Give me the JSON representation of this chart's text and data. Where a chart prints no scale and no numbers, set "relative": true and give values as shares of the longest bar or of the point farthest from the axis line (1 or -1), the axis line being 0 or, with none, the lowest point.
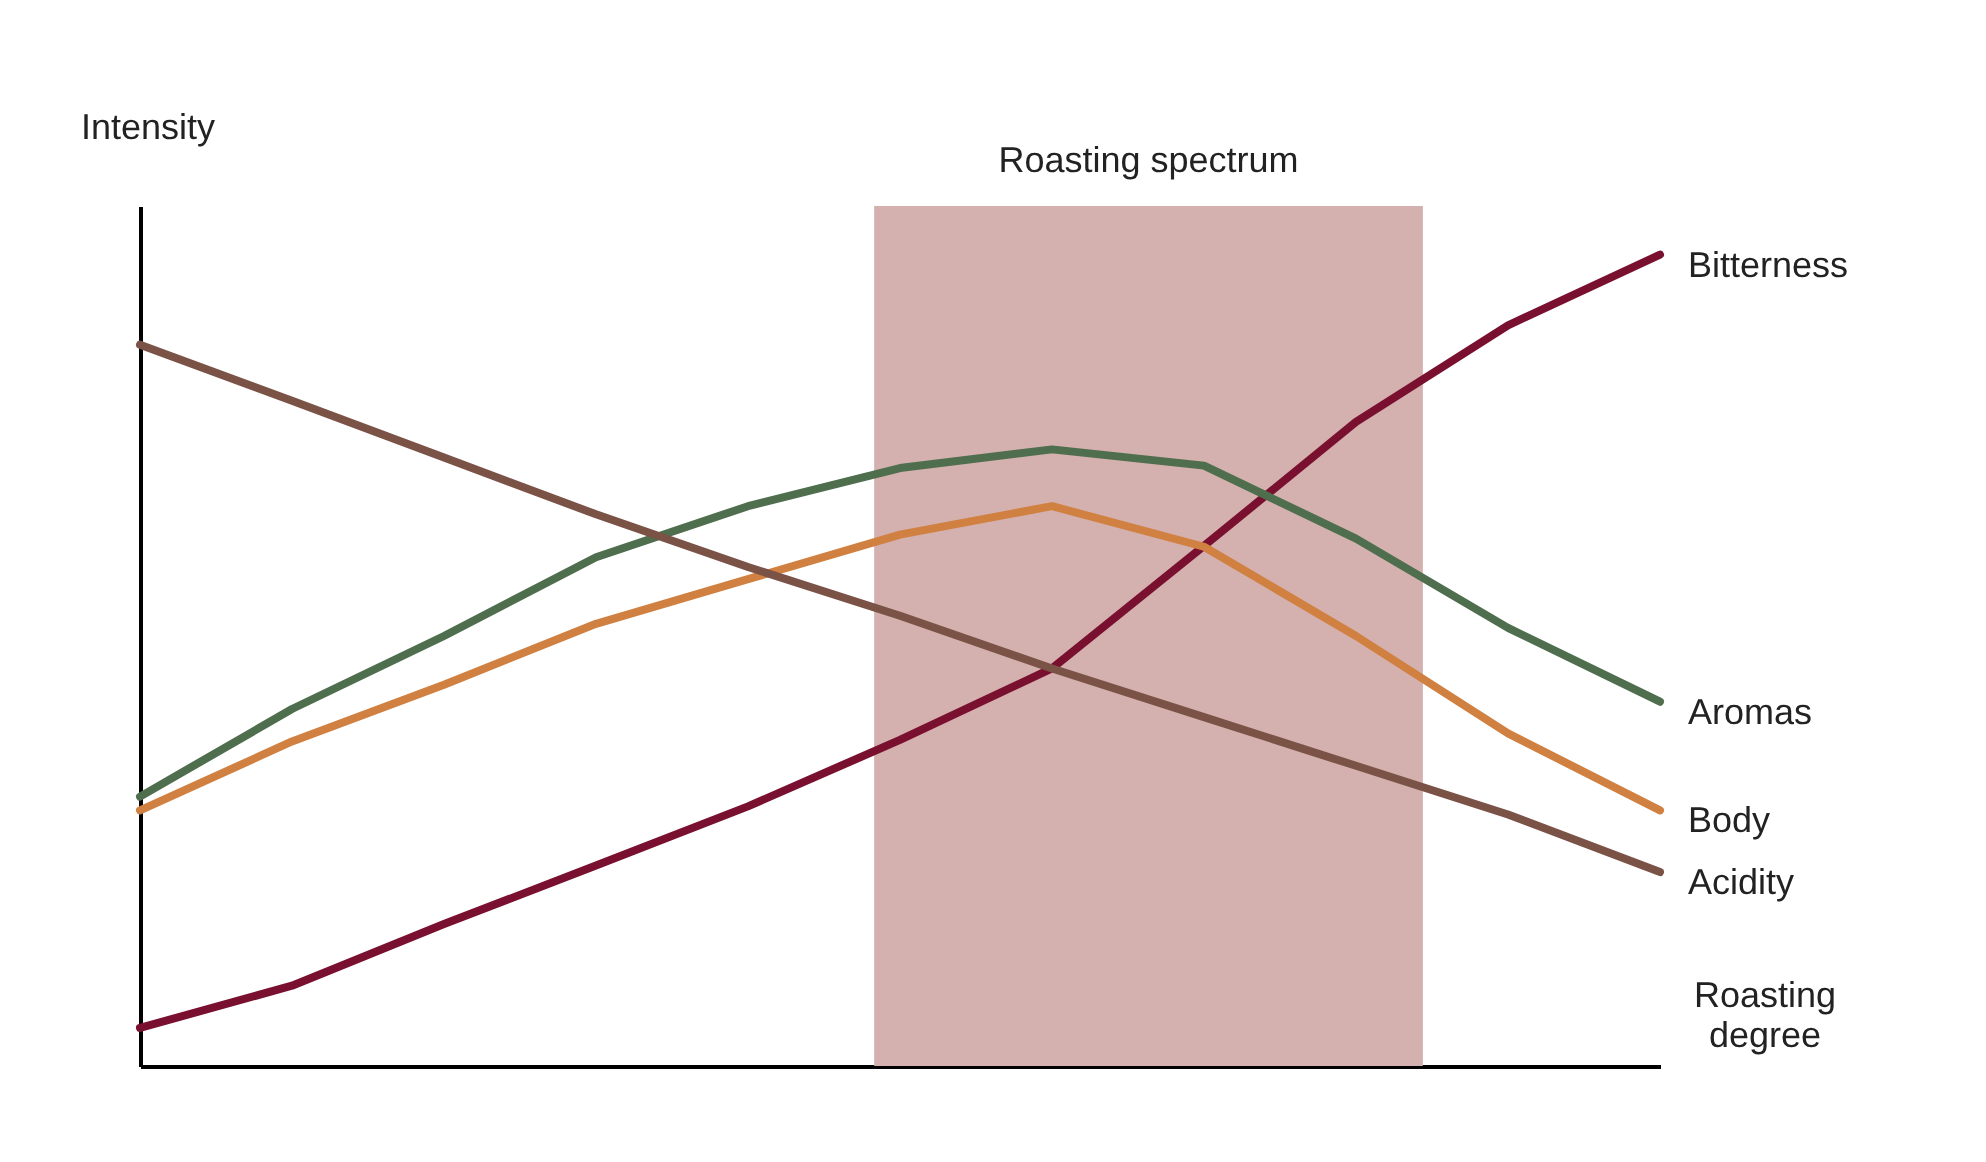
{
  "chart_data": {
    "type": "line",
    "relative": true,
    "xlabel": "Roasting degree",
    "ylabel": "Intensity",
    "legend": false,
    "marker": "none",
    "line_style": "solid",
    "categories": [
      null,
      null,
      null,
      null,
      null,
      null,
      null,
      null,
      null,
      null,
      null
    ],
    "annotations": [
      "Roasting spectrum"
    ],
    "series": [
      {
        "name": "Bitterness",
        "color": "#7a1030",
        "values": [
          0.047,
          0.099,
          0.175,
          0.247,
          0.32,
          0.402,
          0.49,
          0.641,
          0.794,
          0.913,
          1
        ]
      },
      {
        "name": "Aromas",
        "color": "#4e6e4e",
        "values": [
          0.332,
          0.44,
          0.53,
          0.627,
          0.69,
          0.737,
          0.76,
          0.74,
          0.65,
          0.54,
          0.449
        ]
      },
      {
        "name": "Body",
        "color": "#d08040",
        "values": [
          0.315,
          0.4,
          0.47,
          0.545,
          0.6,
          0.655,
          0.69,
          0.64,
          0.53,
          0.41,
          0.315
        ]
      },
      {
        "name": "Acidity",
        "color": "#7a5246",
        "values": [
          0.889,
          0.82,
          0.75,
          0.68,
          0.615,
          0.555,
          0.49,
          0.43,
          0.37,
          0.31,
          0.239
        ]
      }
    ]
  }
}
